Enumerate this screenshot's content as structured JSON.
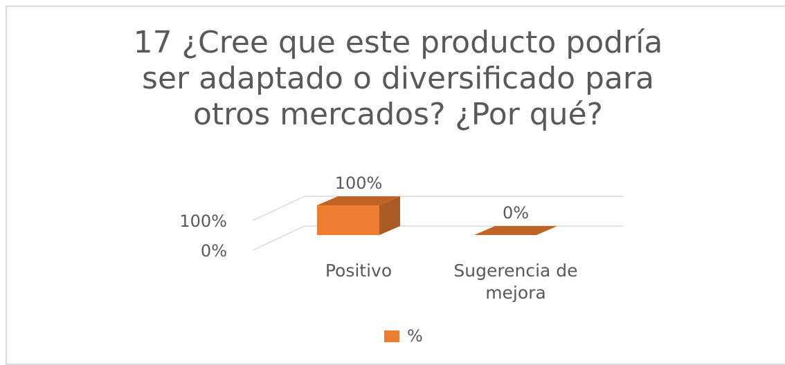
{
  "chart_data": {
    "type": "bar",
    "title": "17 ¿Cree que este producto podría ser adaptado o diversificado para otros mercados? ¿Por qué?",
    "categories": [
      "Positivo",
      "Sugerencia de mejora"
    ],
    "series": [
      {
        "name": "%",
        "color": "#ED7D31",
        "values": [
          100,
          0
        ],
        "value_labels": [
          "100%",
          "0%"
        ]
      }
    ],
    "ylim": [
      0,
      100
    ],
    "yticks": [
      {
        "value": 0,
        "label": "0%"
      },
      {
        "value": 100,
        "label": "100%"
      }
    ],
    "grid": true,
    "legend": "bottom"
  }
}
